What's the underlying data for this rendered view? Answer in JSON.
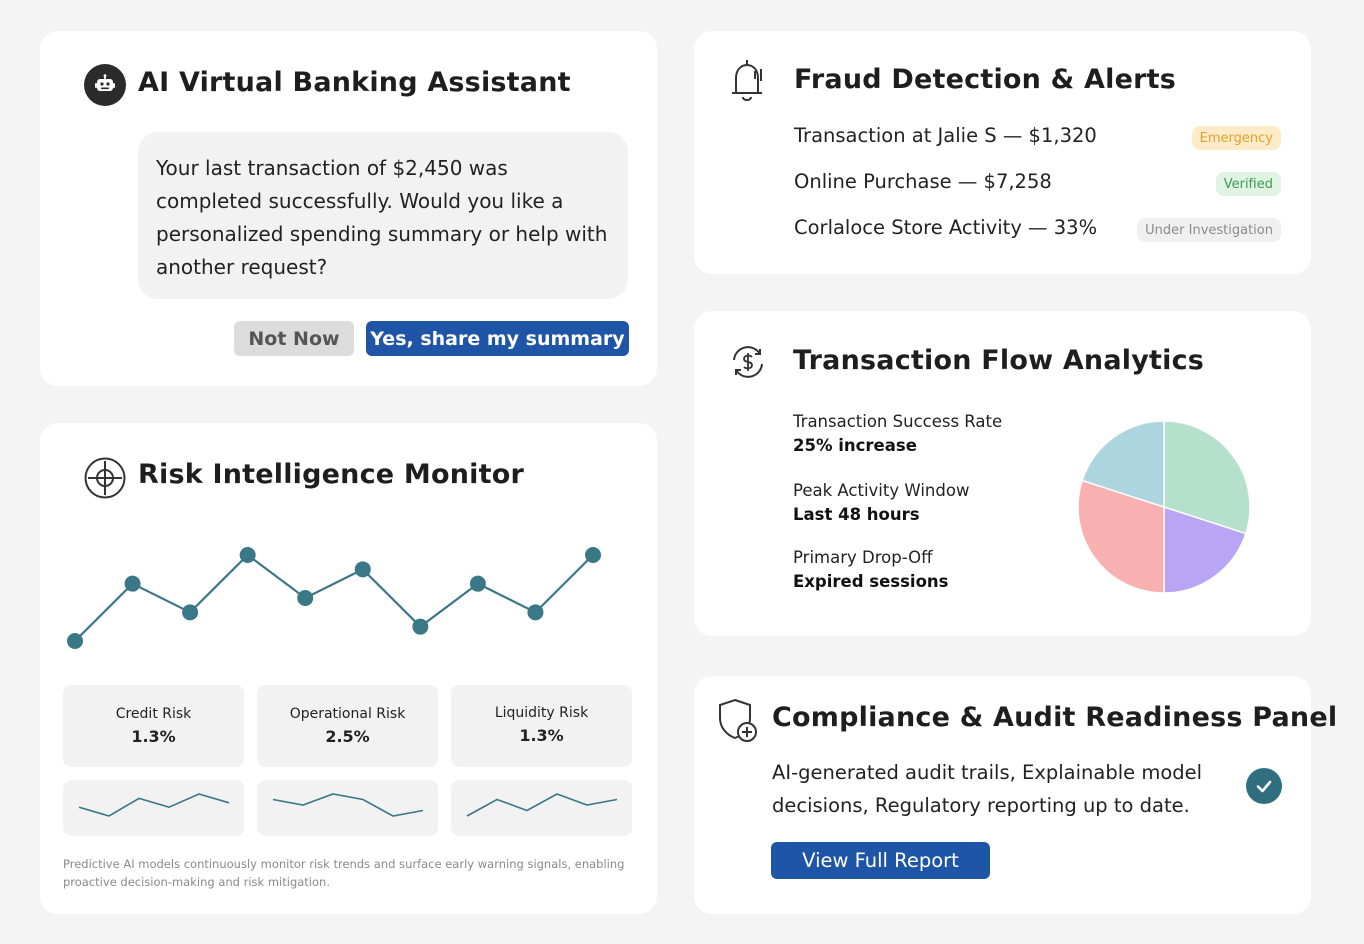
{
  "assistant": {
    "title": "AI Virtual Banking Assistant",
    "icon": "robot-icon",
    "message": "Your last transaction of $2,450 was completed successfully.  Would you like a personalized spending summary or help with another request?",
    "not_now_label": "Not Now",
    "confirm_label": "Yes, share my summary"
  },
  "risk": {
    "title": "Risk Intelligence Monitor",
    "icon": "crosshair-icon",
    "trend_values": [
      1,
      5,
      3,
      7,
      4,
      6,
      2,
      5,
      3,
      7
    ],
    "metrics": [
      {
        "label": "Credit Risk",
        "value": "1.3%",
        "spark": [
          3,
          1,
          5,
          3,
          6,
          4
        ]
      },
      {
        "label": "Operational Risk",
        "value": "2.5%",
        "spark": [
          5,
          4,
          6,
          5,
          2,
          3
        ]
      },
      {
        "label": "Liquidity Risk",
        "value": "1.3%",
        "spark": [
          1,
          4,
          2,
          5,
          3,
          4
        ]
      }
    ],
    "note": "Predictive AI models continuously monitor risk trends and surface early warning signals, enabling proactive decision-making and risk mitigation."
  },
  "fraud": {
    "title": "Fraud Detection & Alerts",
    "icon": "bell-icon",
    "alerts": [
      {
        "text": "Transaction at Jalie S — $1,320",
        "status": "Emergency"
      },
      {
        "text": "Online Purchase — $7,258",
        "status": "Verified"
      },
      {
        "text": "Corlaloce Store Activity — 33%",
        "status": "Under Investigation"
      }
    ],
    "status_colors": {
      "Emergency": {
        "bg": "#fdebc8",
        "fg": "#e0a22b"
      },
      "Verified": {
        "bg": "#dff4e2",
        "fg": "#3f9a52"
      },
      "Under Investigation": {
        "bg": "#f0f0f0",
        "fg": "#8a8a8a"
      }
    }
  },
  "flow": {
    "title": "Transaction Flow Analytics",
    "icon": "currency-cycle-icon",
    "stats": [
      {
        "label": "Transaction Success Rate",
        "value": " 25% increase"
      },
      {
        "label": "Peak Activity Window",
        "value": " Last 48 hours"
      },
      {
        "label": "Primary Drop-Off",
        "value": "Expired sessions"
      }
    ]
  },
  "chart_data": {
    "type": "pie",
    "values": [
      30,
      20,
      30,
      20
    ],
    "colors": [
      "#b5e0cb",
      "#b8a6f5",
      "#f8b0b0",
      "#add5e0"
    ]
  },
  "compliance": {
    "title": "Compliance & Audit Readiness Panel",
    "icon": "shield-plus-icon",
    "text": "AI-generated audit trails, Explainable model decisions, Regulatory reporting up to date.",
    "button_label": "View Full Report",
    "check_icon": "check-circle-icon"
  },
  "theme": {
    "primary": "#1f55a6",
    "teal": "#2e6e7f",
    "trend_line": "#3a7887"
  }
}
